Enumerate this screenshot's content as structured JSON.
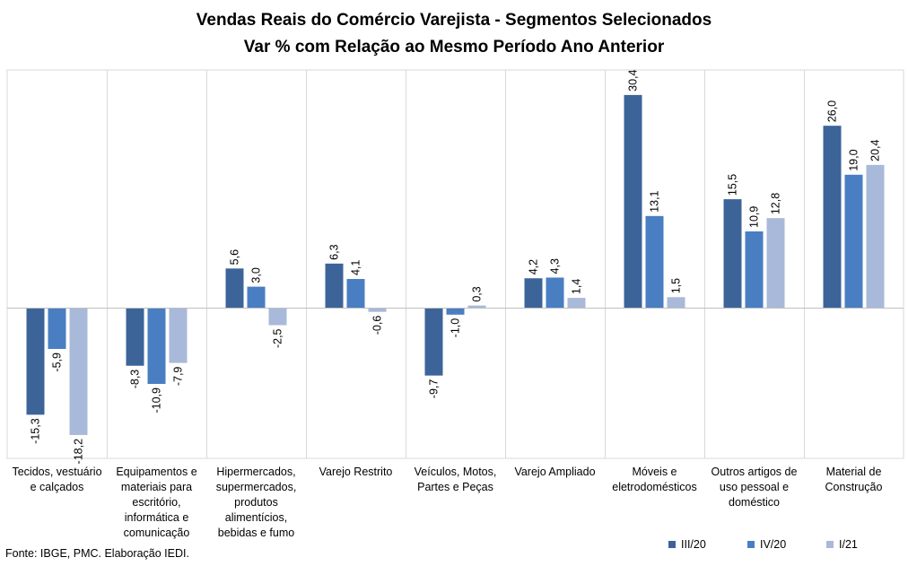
{
  "chart_data": {
    "type": "bar",
    "title": "Vendas Reais do Comércio Varejista - Segmentos Selecionados",
    "subtitle": "Var % com Relação ao Mesmo Período Ano Anterior",
    "categories": [
      "Tecidos, vestuário e calçados",
      "Equipamentos e materiais para escritório, informática e comunicação",
      "Hipermercados, supermercados, produtos alimentícios, bebidas e fumo",
      "Varejo Restrito",
      "Veículos, Motos, Partes e Peças",
      "Varejo Ampliado",
      "Móveis e eletrodomésticos",
      "Outros artigos de uso pessoal e doméstico",
      "Material de Construção"
    ],
    "series": [
      {
        "name": "III/20",
        "color": "#3c6499",
        "values": [
          -15.3,
          -8.3,
          5.6,
          6.3,
          -9.7,
          4.2,
          30.4,
          15.5,
          26.0
        ],
        "labels": [
          "-15,3",
          "-8,3",
          "5,6",
          "6,3",
          "-9,7",
          "4,2",
          "30,4",
          "15,5",
          "26,0"
        ]
      },
      {
        "name": "IV/20",
        "color": "#4a7ec2",
        "values": [
          -5.9,
          -10.9,
          3.0,
          4.1,
          -1.0,
          4.3,
          13.1,
          10.9,
          19.0
        ],
        "labels": [
          "-5,9",
          "-10,9",
          "3,0",
          "4,1",
          "-1,0",
          "4,3",
          "13,1",
          "10,9",
          "19,0"
        ]
      },
      {
        "name": "I/21",
        "color": "#a8b9d9",
        "values": [
          -18.2,
          -7.9,
          -2.5,
          -0.6,
          0.3,
          1.4,
          1.5,
          12.8,
          20.4
        ],
        "labels": [
          "-18,2",
          "-7,9",
          "-2,5",
          "-0,6",
          "0,3",
          "1,4",
          "1,5",
          "12,8",
          "20,4"
        ]
      }
    ],
    "grid": "vertical category separators",
    "legend_position": "bottom-right"
  },
  "source": "Fonte: IBGE, PMC. Elaboração IEDI."
}
